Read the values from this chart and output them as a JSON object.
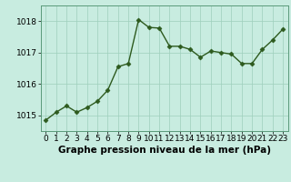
{
  "x": [
    0,
    1,
    2,
    3,
    4,
    5,
    6,
    7,
    8,
    9,
    10,
    11,
    12,
    13,
    14,
    15,
    16,
    17,
    18,
    19,
    20,
    21,
    22,
    23
  ],
  "y": [
    1014.85,
    1015.1,
    1015.3,
    1015.1,
    1015.25,
    1015.45,
    1015.8,
    1016.55,
    1016.65,
    1018.05,
    1017.8,
    1017.78,
    1017.2,
    1017.2,
    1017.1,
    1016.85,
    1017.05,
    1017.0,
    1016.95,
    1016.65,
    1016.65,
    1017.1,
    1017.4,
    1017.75
  ],
  "line_color": "#2d5a1e",
  "bg_color": "#c8ece0",
  "grid_color": "#9ecfbc",
  "xlabel": "Graphe pression niveau de la mer (hPa)",
  "ylim_min": 1014.5,
  "ylim_max": 1018.5,
  "yticks": [
    1015,
    1016,
    1017,
    1018
  ],
  "xtick_labels": [
    "0",
    "1",
    "2",
    "3",
    "4",
    "5",
    "6",
    "7",
    "8",
    "9",
    "10",
    "11",
    "12",
    "13",
    "14",
    "15",
    "16",
    "17",
    "18",
    "19",
    "20",
    "21",
    "22",
    "23"
  ],
  "xlabel_fontsize": 7.5,
  "tick_fontsize": 6.5,
  "line_width": 1.0,
  "marker_size": 2.5
}
